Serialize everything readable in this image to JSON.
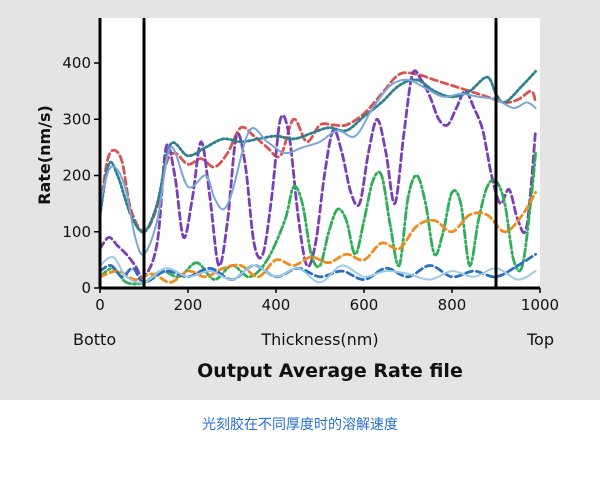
{
  "caption": "光刻胶在不同厚度时的溶解速度",
  "colors": {
    "red": "#d9534f",
    "purple": "#7b3fb5",
    "teal": "#2f7f8f",
    "lightblue": "#7aa6d8",
    "green": "#2fae5a",
    "orange": "#ef8c1e",
    "blue": "#2a6fbf",
    "cyan": "#9ccbe6",
    "caption": "#2a6fcf"
  },
  "chart_data": {
    "type": "line",
    "title": "Output Average Rate file",
    "xlabel": "Thickness(nm)",
    "ylabel": "Rate(nm/s)",
    "x_start_label": "Botto",
    "x_end_label": "Top",
    "xlim": [
      0,
      1000
    ],
    "ylim": [
      0,
      480
    ],
    "xticks": [
      0,
      200,
      400,
      600,
      800,
      1000
    ],
    "yticks": [
      0,
      100,
      200,
      300,
      400
    ],
    "grid": false,
    "vertical_markers": [
      0,
      100,
      900
    ],
    "series": [
      {
        "color": "red",
        "style": "dashed",
        "x": [
          0,
          15,
          30,
          50,
          70,
          100,
          130,
          150,
          170,
          200,
          230,
          260,
          290,
          320,
          350,
          380,
          410,
          440,
          470,
          500,
          530,
          560,
          600,
          640,
          680,
          720,
          760,
          800,
          840,
          880,
          920,
          950,
          980,
          990
        ],
        "y": [
          130,
          220,
          245,
          225,
          140,
          100,
          145,
          220,
          240,
          220,
          230,
          215,
          240,
          285,
          270,
          250,
          235,
          300,
          260,
          290,
          290,
          290,
          310,
          345,
          380,
          380,
          370,
          360,
          350,
          340,
          330,
          335,
          350,
          330
        ]
      },
      {
        "color": "purple",
        "style": "dashed",
        "x": [
          0,
          20,
          40,
          60,
          80,
          100,
          130,
          150,
          170,
          190,
          210,
          230,
          250,
          270,
          290,
          310,
          330,
          350,
          370,
          390,
          410,
          430,
          450,
          470,
          490,
          510,
          530,
          550,
          570,
          590,
          610,
          630,
          650,
          670,
          690,
          710,
          730,
          750,
          770,
          790,
          810,
          830,
          850,
          870,
          890,
          910,
          930,
          950,
          970,
          990
        ],
        "y": [
          70,
          90,
          75,
          60,
          40,
          20,
          80,
          250,
          200,
          90,
          160,
          260,
          160,
          40,
          120,
          270,
          220,
          80,
          60,
          160,
          300,
          270,
          130,
          40,
          80,
          200,
          280,
          240,
          170,
          150,
          240,
          300,
          240,
          150,
          270,
          380,
          370,
          340,
          300,
          290,
          320,
          350,
          320,
          280,
          200,
          150,
          175,
          120,
          110,
          280
        ]
      },
      {
        "color": "teal",
        "style": "dotted",
        "x": [
          0,
          20,
          40,
          70,
          100,
          130,
          160,
          200,
          240,
          280,
          320,
          360,
          400,
          440,
          480,
          520,
          560,
          600,
          640,
          680,
          720,
          760,
          800,
          840,
          880,
          900,
          920,
          960,
          990
        ],
        "y": [
          130,
          220,
          200,
          130,
          100,
          150,
          255,
          235,
          250,
          265,
          260,
          265,
          270,
          265,
          275,
          285,
          280,
          305,
          330,
          360,
          370,
          350,
          340,
          350,
          375,
          345,
          330,
          360,
          385
        ]
      },
      {
        "color": "lightblue",
        "style": "solid",
        "x": [
          0,
          20,
          40,
          60,
          80,
          100,
          130,
          160,
          200,
          240,
          260,
          280,
          300,
          340,
          380,
          420,
          460,
          500,
          540,
          580,
          620,
          660,
          700,
          740,
          780,
          820,
          860,
          900,
          940,
          970,
          990
        ],
        "y": [
          150,
          210,
          210,
          170,
          90,
          60,
          120,
          250,
          180,
          200,
          160,
          140,
          170,
          280,
          260,
          240,
          250,
          260,
          280,
          270,
          320,
          360,
          370,
          355,
          340,
          345,
          340,
          335,
          320,
          330,
          320
        ]
      },
      {
        "color": "green",
        "style": "dashdot",
        "x": [
          0,
          30,
          60,
          100,
          140,
          180,
          220,
          260,
          300,
          340,
          380,
          420,
          440,
          460,
          480,
          500,
          520,
          540,
          560,
          580,
          600,
          620,
          640,
          660,
          680,
          700,
          720,
          740,
          760,
          780,
          800,
          820,
          840,
          860,
          880,
          900,
          920,
          940,
          960,
          980,
          990
        ],
        "y": [
          20,
          35,
          10,
          10,
          30,
          20,
          45,
          15,
          40,
          20,
          50,
          120,
          180,
          150,
          60,
          40,
          100,
          140,
          120,
          60,
          120,
          190,
          200,
          110,
          40,
          160,
          200,
          150,
          60,
          100,
          170,
          150,
          40,
          120,
          180,
          190,
          150,
          50,
          40,
          160,
          240
        ]
      },
      {
        "color": "orange",
        "style": "dashed",
        "x": [
          0,
          40,
          80,
          120,
          160,
          200,
          240,
          280,
          320,
          360,
          400,
          440,
          480,
          520,
          560,
          600,
          640,
          680,
          720,
          760,
          800,
          840,
          880,
          920,
          960,
          990
        ],
        "y": [
          20,
          30,
          15,
          25,
          10,
          30,
          20,
          35,
          40,
          20,
          50,
          40,
          55,
          45,
          60,
          50,
          80,
          70,
          110,
          120,
          100,
          130,
          130,
          100,
          130,
          170
        ]
      },
      {
        "color": "blue",
        "style": "dashed",
        "x": [
          0,
          25,
          50,
          75,
          100,
          150,
          200,
          250,
          300,
          350,
          400,
          450,
          500,
          550,
          600,
          650,
          700,
          750,
          800,
          850,
          900,
          950,
          990
        ],
        "y": [
          30,
          40,
          20,
          35,
          10,
          30,
          20,
          35,
          15,
          40,
          20,
          35,
          20,
          30,
          15,
          35,
          20,
          40,
          20,
          30,
          20,
          40,
          60
        ]
      },
      {
        "color": "cyan",
        "style": "solid",
        "x": [
          0,
          30,
          60,
          100,
          150,
          200,
          250,
          300,
          350,
          400,
          450,
          500,
          550,
          600,
          650,
          700,
          750,
          800,
          850,
          900,
          950,
          990
        ],
        "y": [
          40,
          55,
          20,
          10,
          35,
          20,
          30,
          15,
          40,
          20,
          35,
          10,
          40,
          20,
          30,
          25,
          15,
          30,
          20,
          35,
          15,
          30
        ]
      }
    ]
  }
}
